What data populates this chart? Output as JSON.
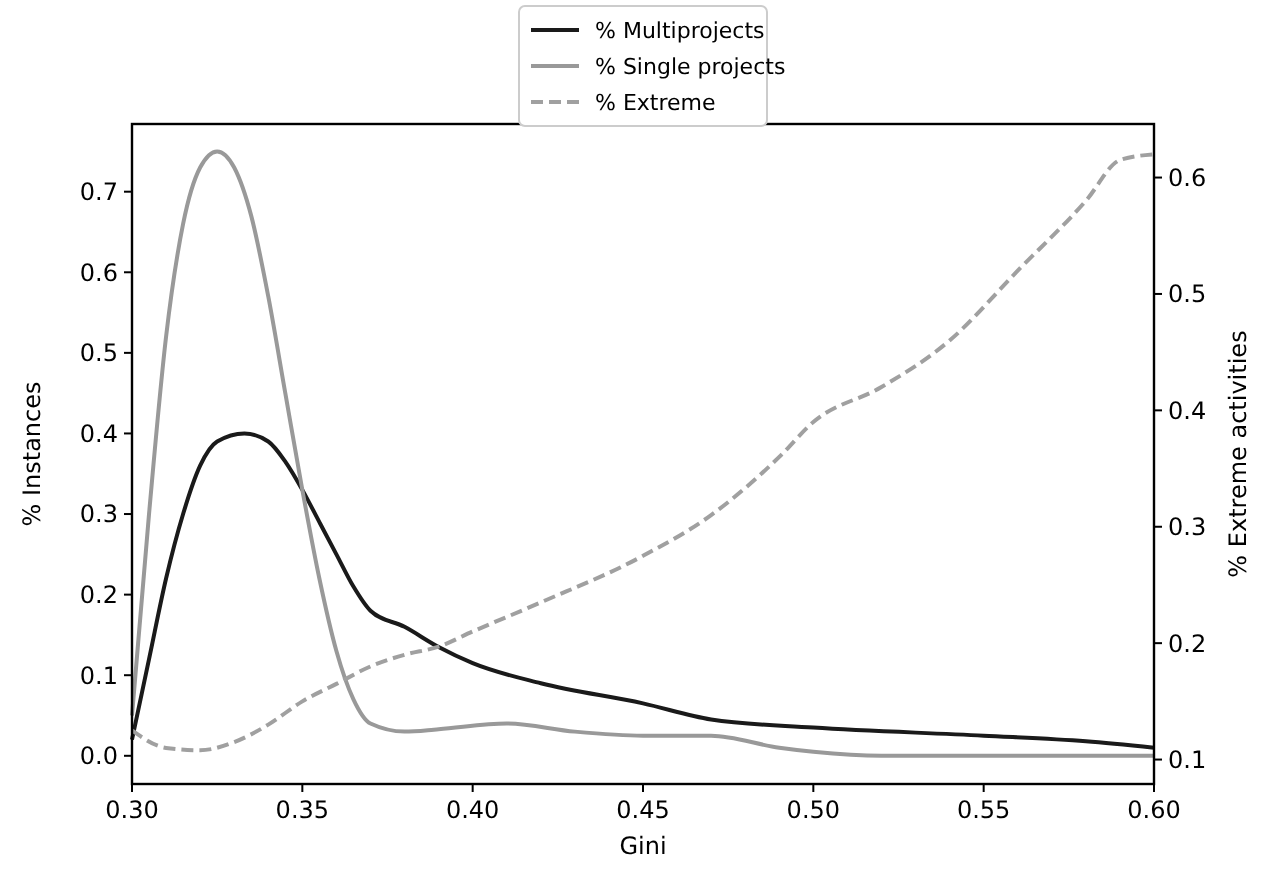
{
  "chart_data": {
    "type": "line",
    "xlabel": "Gini",
    "ylabel": "% Instances",
    "y2label": "% Extreme activities",
    "xlim": [
      0.3,
      0.6
    ],
    "xticks": [
      {
        "value": 0.3,
        "label": "0.30"
      },
      {
        "value": 0.35,
        "label": "0.35"
      },
      {
        "value": 0.4,
        "label": "0.40"
      },
      {
        "value": 0.45,
        "label": "0.45"
      },
      {
        "value": 0.5,
        "label": "0.50"
      },
      {
        "value": 0.55,
        "label": "0.55"
      },
      {
        "value": 0.6,
        "label": "0.60"
      }
    ],
    "ylim": [
      -0.035,
      0.784
    ],
    "yticks": [
      {
        "value": 0,
        "label": "0.0"
      },
      0.1,
      0.2,
      0.3,
      0.4,
      0.5,
      0.6,
      0.7
    ],
    "y2lim": [
      0.079,
      0.646
    ],
    "y2ticks": [
      0.1,
      0.2,
      0.3,
      0.4,
      0.5,
      0.6
    ],
    "legend": "top",
    "grid": false,
    "line_style": "solid",
    "marker": "none",
    "series": [
      {
        "name": "% Multiprojects",
        "color": "#1a1a1a",
        "x": [
          0.3,
          0.305,
          0.31,
          0.315,
          0.32,
          0.325,
          0.333,
          0.34,
          0.345,
          0.35,
          0.355,
          0.36,
          0.365,
          0.37,
          0.38,
          0.39,
          0.4,
          0.42,
          0.45,
          0.47,
          0.5,
          0.55,
          0.58,
          0.6
        ],
        "values": [
          0.02,
          0.12,
          0.22,
          0.3,
          0.36,
          0.39,
          0.4,
          0.39,
          0.365,
          0.33,
          0.29,
          0.25,
          0.21,
          0.18,
          0.16,
          0.135,
          0.115,
          0.09,
          0.065,
          0.045,
          0.035,
          0.025,
          0.018,
          0.01
        ]
      },
      {
        "name": "% Single projects",
        "color": "#999999",
        "x": [
          0.3,
          0.305,
          0.31,
          0.315,
          0.32,
          0.325,
          0.33,
          0.335,
          0.34,
          0.345,
          0.35,
          0.355,
          0.36,
          0.365,
          0.37,
          0.38,
          0.39,
          0.41,
          0.43,
          0.45,
          0.47,
          0.49,
          0.5,
          0.52,
          0.6
        ],
        "values": [
          0.05,
          0.3,
          0.52,
          0.66,
          0.73,
          0.75,
          0.73,
          0.67,
          0.57,
          0.45,
          0.33,
          0.22,
          0.13,
          0.07,
          0.04,
          0.03,
          0.033,
          0.04,
          0.03,
          0.025,
          0.025,
          0.01,
          0.005,
          0.0,
          0.0
        ]
      },
      {
        "name": "% Extreme",
        "color": "#a0a0a0",
        "axis": "y2",
        "line_style": "dashed",
        "x": [
          0.3,
          0.31,
          0.32,
          0.33,
          0.34,
          0.35,
          0.36,
          0.37,
          0.38,
          0.39,
          0.4,
          0.42,
          0.45,
          0.47,
          0.49,
          0.5,
          0.52,
          0.54,
          0.56,
          0.58,
          0.59,
          0.6
        ],
        "values": [
          0.125,
          0.11,
          0.108,
          0.115,
          0.13,
          0.15,
          0.165,
          0.18,
          0.19,
          0.197,
          0.21,
          0.235,
          0.275,
          0.31,
          0.36,
          0.39,
          0.42,
          0.46,
          0.52,
          0.58,
          0.615,
          0.62
        ]
      }
    ]
  }
}
